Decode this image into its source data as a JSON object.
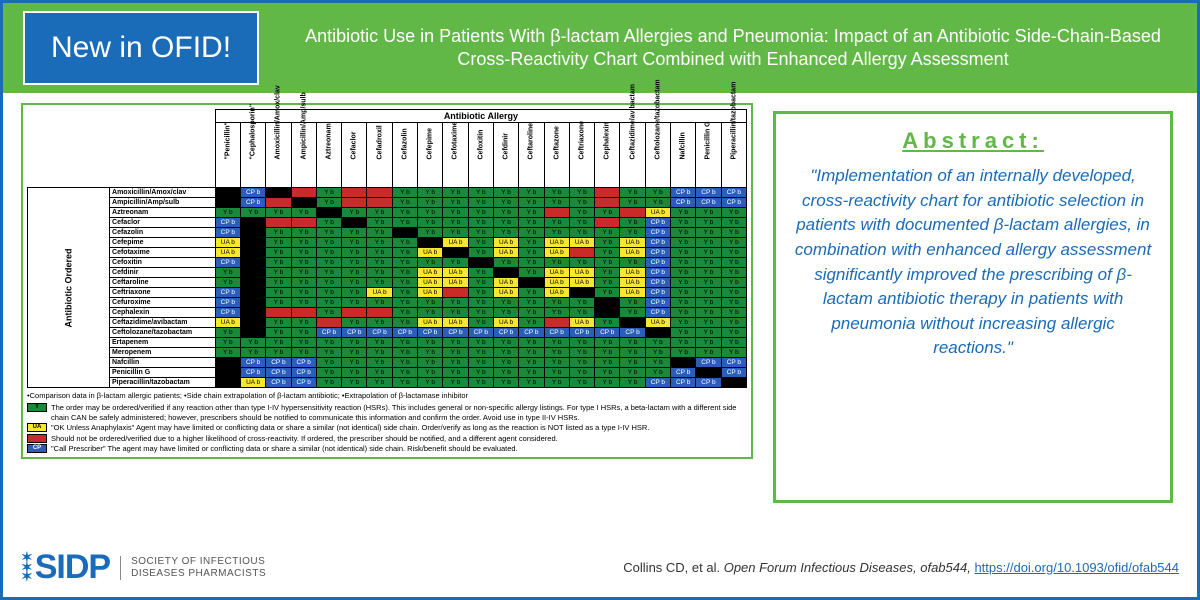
{
  "badge": "New in OFID!",
  "title": "Antibiotic Use in Patients With β-lactam Allergies and Pneumonia: Impact of an Antibiotic Side-Chain-Based Cross-Reactivity Chart Combined with Enhanced Allergy Assessment",
  "chart": {
    "super_header": "Antibiotic Allergy",
    "side_label": "Antibiotic Ordered",
    "columns": [
      "\"Penicillin\"",
      "\"Cephalosporin\"",
      "Amoxicillin/Amox/clav",
      "Ampicillin/Amp/sulb",
      "Aztreonam",
      "Cefaclor",
      "Cefadroxil",
      "Cefazolin",
      "Cefepime",
      "Cefotaxime",
      "Cefoxitin",
      "Cefdinir",
      "Ceftaroline",
      "Ceftazone",
      "Ceftriaxone",
      "Cephalexin",
      "Ceftazidime/avibactam",
      "Ceftolozane/tazobactam",
      "Nafcillin",
      "Penicillin G",
      "Piperacillin/tazobactam"
    ],
    "rows": [
      {
        "label": "Amoxicillin/Amox/clav",
        "c": [
          "k",
          "b",
          "k",
          "r",
          "g",
          "r",
          "r",
          "g",
          "g",
          "g",
          "g",
          "g",
          "g",
          "g",
          "g",
          "r",
          "g",
          "g",
          "b",
          "b",
          "b"
        ]
      },
      {
        "label": "Ampicillin/Amp/sulb",
        "c": [
          "k",
          "b",
          "r",
          "k",
          "g",
          "r",
          "r",
          "g",
          "g",
          "g",
          "g",
          "g",
          "g",
          "g",
          "g",
          "r",
          "g",
          "g",
          "b",
          "b",
          "b"
        ]
      },
      {
        "label": "Aztreonam",
        "c": [
          "g",
          "g",
          "g",
          "g",
          "k",
          "g",
          "g",
          "g",
          "g",
          "g",
          "g",
          "g",
          "g",
          "r",
          "g",
          "g",
          "r",
          "y",
          "g",
          "g",
          "g"
        ]
      },
      {
        "label": "Cefaclor",
        "c": [
          "b",
          "k",
          "r",
          "r",
          "g",
          "k",
          "g",
          "g",
          "g",
          "g",
          "g",
          "g",
          "g",
          "g",
          "g",
          "r",
          "g",
          "b",
          "g",
          "g",
          "g"
        ]
      },
      {
        "label": "Cefazolin",
        "c": [
          "b",
          "k",
          "g",
          "g",
          "g",
          "g",
          "g",
          "k",
          "g",
          "g",
          "g",
          "g",
          "g",
          "g",
          "g",
          "g",
          "g",
          "b",
          "g",
          "g",
          "g"
        ]
      },
      {
        "label": "Cefepime",
        "c": [
          "y",
          "k",
          "g",
          "g",
          "g",
          "g",
          "g",
          "g",
          "k",
          "y",
          "g",
          "y",
          "g",
          "y",
          "y",
          "g",
          "y",
          "b",
          "g",
          "g",
          "g"
        ]
      },
      {
        "label": "Cefotaxime",
        "c": [
          "y",
          "k",
          "g",
          "g",
          "g",
          "g",
          "g",
          "g",
          "y",
          "k",
          "g",
          "y",
          "g",
          "y",
          "r",
          "g",
          "y",
          "b",
          "g",
          "g",
          "g"
        ]
      },
      {
        "label": "Cefoxitin",
        "c": [
          "b",
          "k",
          "g",
          "g",
          "g",
          "g",
          "g",
          "g",
          "g",
          "g",
          "k",
          "g",
          "g",
          "g",
          "g",
          "g",
          "g",
          "b",
          "g",
          "g",
          "g"
        ]
      },
      {
        "label": "Cefdinir",
        "c": [
          "g",
          "k",
          "g",
          "g",
          "g",
          "g",
          "g",
          "g",
          "y",
          "y",
          "g",
          "k",
          "g",
          "y",
          "y",
          "g",
          "y",
          "b",
          "g",
          "g",
          "g"
        ]
      },
      {
        "label": "Ceftaroline",
        "c": [
          "g",
          "k",
          "g",
          "g",
          "g",
          "g",
          "g",
          "g",
          "y",
          "y",
          "g",
          "y",
          "k",
          "y",
          "y",
          "g",
          "y",
          "b",
          "g",
          "g",
          "g"
        ]
      },
      {
        "label": "Ceftriaxone",
        "c": [
          "b",
          "k",
          "g",
          "g",
          "g",
          "g",
          "y",
          "g",
          "y",
          "r",
          "g",
          "y",
          "g",
          "y",
          "k",
          "g",
          "y",
          "b",
          "g",
          "g",
          "g"
        ]
      },
      {
        "label": "Cefuroxime",
        "c": [
          "b",
          "k",
          "g",
          "g",
          "g",
          "g",
          "g",
          "g",
          "g",
          "g",
          "g",
          "g",
          "g",
          "g",
          "g",
          "k",
          "g",
          "b",
          "g",
          "g",
          "g"
        ]
      },
      {
        "label": "Cephalexin",
        "c": [
          "b",
          "k",
          "r",
          "r",
          "g",
          "r",
          "r",
          "g",
          "g",
          "g",
          "g",
          "g",
          "g",
          "g",
          "g",
          "k",
          "g",
          "b",
          "g",
          "g",
          "g"
        ]
      },
      {
        "label": "Ceftazidime/avibactam",
        "c": [
          "y",
          "k",
          "g",
          "g",
          "r",
          "g",
          "g",
          "g",
          "y",
          "y",
          "g",
          "y",
          "g",
          "r",
          "y",
          "g",
          "k",
          "y",
          "g",
          "g",
          "g"
        ]
      },
      {
        "label": "Ceftolozane/tazobactam",
        "c": [
          "g",
          "k",
          "g",
          "g",
          "b",
          "b",
          "b",
          "b",
          "b",
          "b",
          "b",
          "b",
          "b",
          "b",
          "b",
          "b",
          "b",
          "k",
          "g",
          "g",
          "g"
        ]
      },
      {
        "label": "Ertapenem",
        "c": [
          "g",
          "g",
          "g",
          "g",
          "g",
          "g",
          "g",
          "g",
          "g",
          "g",
          "g",
          "g",
          "g",
          "g",
          "g",
          "g",
          "g",
          "g",
          "g",
          "g",
          "g"
        ]
      },
      {
        "label": "Meropenem",
        "c": [
          "g",
          "g",
          "g",
          "g",
          "g",
          "g",
          "g",
          "g",
          "g",
          "g",
          "g",
          "g",
          "g",
          "g",
          "g",
          "g",
          "g",
          "g",
          "g",
          "g",
          "g"
        ]
      },
      {
        "label": "Nafcillin",
        "c": [
          "k",
          "b",
          "b",
          "b",
          "g",
          "g",
          "g",
          "g",
          "g",
          "g",
          "g",
          "g",
          "g",
          "g",
          "g",
          "g",
          "g",
          "g",
          "k",
          "b",
          "b"
        ]
      },
      {
        "label": "Penicillin G",
        "c": [
          "k",
          "b",
          "b",
          "b",
          "g",
          "g",
          "g",
          "g",
          "g",
          "g",
          "g",
          "g",
          "g",
          "g",
          "g",
          "g",
          "g",
          "g",
          "b",
          "k",
          "b"
        ]
      },
      {
        "label": "Piperacillin/tazobactam",
        "c": [
          "k",
          "y",
          "b",
          "b",
          "g",
          "g",
          "g",
          "g",
          "g",
          "g",
          "g",
          "g",
          "g",
          "g",
          "g",
          "g",
          "g",
          "b",
          "b",
          "b",
          "k"
        ]
      }
    ],
    "footnote_line": "•Comparison data in β-lactam allergic patients; •Side chain extrapolation of β-lactam antibiotic; •Extrapolation of β-lactamase inhibitor",
    "cell_text": {
      "g": "Y b",
      "r": "",
      "y": "UA b",
      "b": "CP b",
      "k": ""
    },
    "legend": [
      {
        "cls": "g",
        "code": "Y",
        "text": "The order may be ordered/verified if any reaction other than type I-IV hypersensitivity reaction (HSRs). This includes general or non-specific allergy listings. For type I HSRs, a beta-lactam with a different side chain CAN be safely administered; however, prescribers should be notified to communicate this information and confirm the order. Avoid use in type II-IV HSRs."
      },
      {
        "cls": "y",
        "code": "UA",
        "text": "\"OK Unless Anaphylaxis\" Agent may have limited or conflicting data or share a similar (not identical) side chain. Order/verify as long as the reaction is NOT listed as a type I-IV HSR."
      },
      {
        "cls": "r",
        "code": "",
        "text": "Should not be ordered/verified due to a higher likelihood of cross-reactivity. If ordered, the prescriber should be notified, and a different agent considered."
      },
      {
        "cls": "b",
        "code": "CP",
        "text": "\"Call Prescriber\" The agent may have limited or conflicting data or share a similar (not identical) side chain. Risk/benefit should be evaluated."
      }
    ]
  },
  "abstract": {
    "header": "Abstract:",
    "text": "\"Implementation of an internally developed, cross-reactivity chart for antibiotic selection in patients with documented β-lactam allergies, in combination with enhanced allergy assessment significantly improved the prescribing of β-lactam antibiotic therapy in patients with pneumonia without increasing allergic reactions.\""
  },
  "footer": {
    "logo_main": "SIDP",
    "logo_sub1": "SOCIETY OF INFECTIOUS",
    "logo_sub2": "DISEASES PHARMACISTS",
    "citation_pre": "Collins CD, et al. ",
    "citation_journal": "Open Forum Infectious Diseases, ofab544, ",
    "citation_link": "https://doi.org/10.1093/ofid/ofab544"
  },
  "colors": {
    "green_box": "#62b846",
    "blue": "#1a6bb8",
    "cell_green": "#1a8a3a",
    "cell_red": "#c92a2a",
    "cell_yellow": "#f7e733",
    "cell_blue": "#2b5eb8",
    "cell_black": "#000000",
    "page_bg": "#ffffff"
  }
}
